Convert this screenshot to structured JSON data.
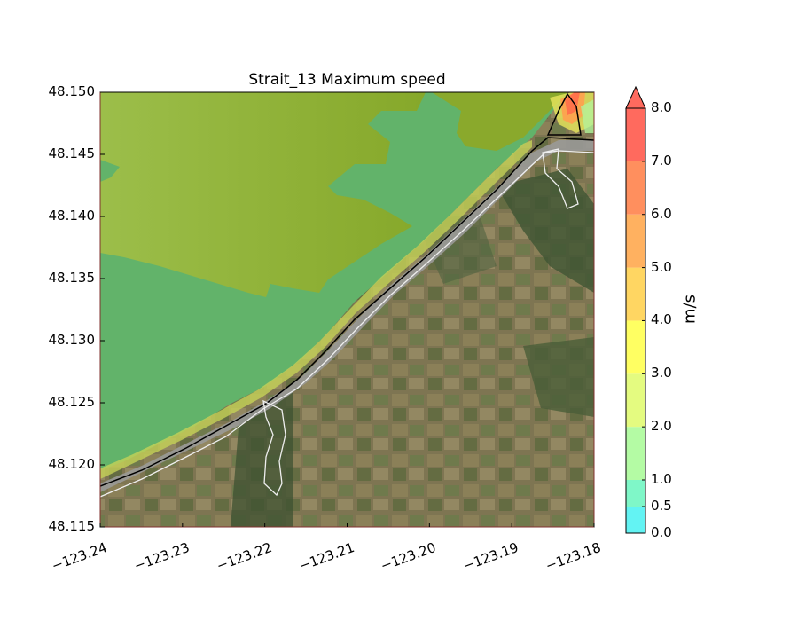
{
  "title": "Strait_13 Maximum speed",
  "y_axis": {
    "ticks": [
      "48.150",
      "48.145",
      "48.140",
      "48.135",
      "48.130",
      "48.125",
      "48.120",
      "48.115"
    ],
    "range": [
      48.115,
      48.15
    ]
  },
  "x_axis": {
    "ticks": [
      "−123.24",
      "−123.23",
      "−123.22",
      "−123.21",
      "−123.20",
      "−123.19",
      "−123.18"
    ],
    "range": [
      -123.24,
      -123.18
    ]
  },
  "colorbar": {
    "label": "m/s",
    "ticks": [
      "8.0",
      "7.0",
      "6.0",
      "5.0",
      "4.0",
      "3.0",
      "2.0",
      "1.0",
      "0.5",
      "0.0"
    ],
    "levels": [
      0.0,
      0.5,
      1.0,
      2.0,
      3.0,
      4.0,
      5.0,
      6.0,
      7.0,
      8.0
    ],
    "colors": [
      "#63f3f3",
      "#7ff7c8",
      "#b4fba4",
      "#e4fb80",
      "#ffff62",
      "#ffd662",
      "#ffb160",
      "#ff8f5e",
      "#ff6a5e"
    ],
    "extend": "max"
  }
}
